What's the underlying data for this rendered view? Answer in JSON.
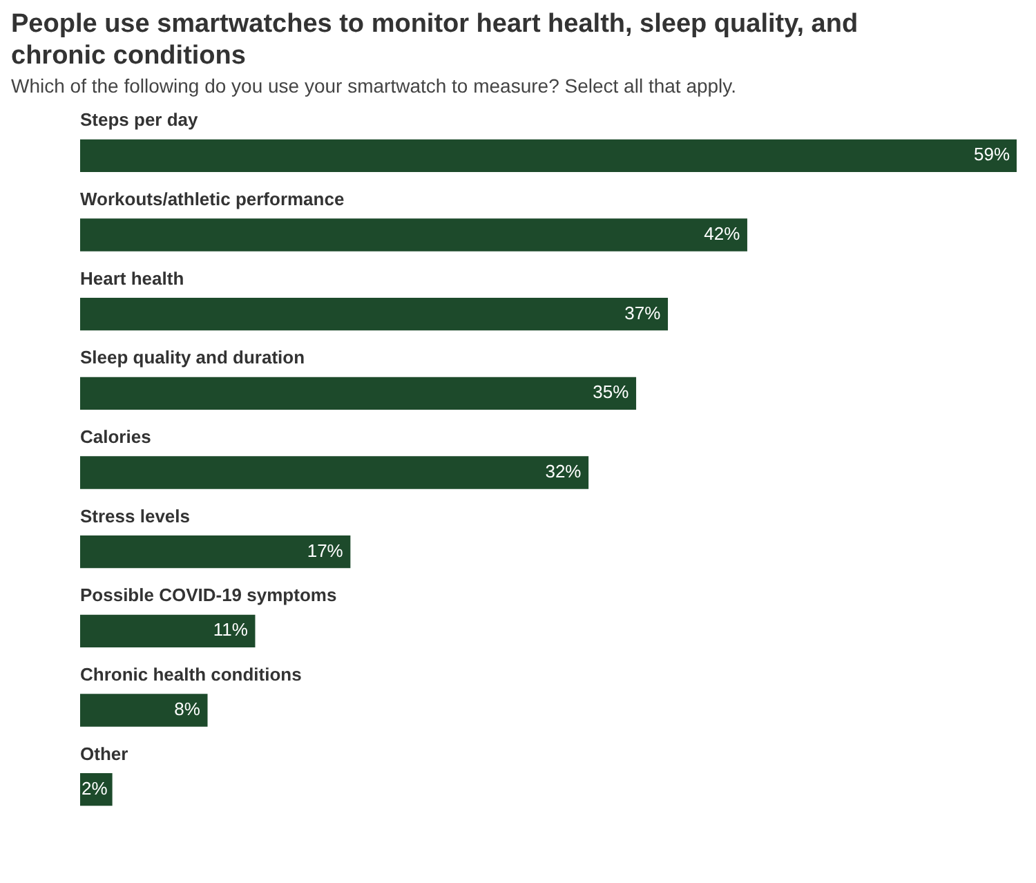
{
  "chart_data": {
    "type": "bar",
    "orientation": "horizontal",
    "title": "People use smartwatches to monitor heart health, sleep quality, and chronic conditions",
    "subtitle": "Which of the following do you use your smartwatch to measure? Select all that apply.",
    "categories": [
      "Steps per day",
      "Workouts/athletic performance",
      "Heart health",
      "Sleep quality and duration",
      "Calories",
      "Stress levels",
      "Possible COVID-19 symptoms",
      "Chronic health conditions",
      "Other"
    ],
    "values": [
      59,
      42,
      37,
      35,
      32,
      17,
      11,
      8,
      2
    ],
    "value_labels": [
      "59%",
      "42%",
      "37%",
      "35%",
      "32%",
      "17%",
      "11%",
      "8%",
      "2%"
    ],
    "color": "#1d4a2b"
  }
}
